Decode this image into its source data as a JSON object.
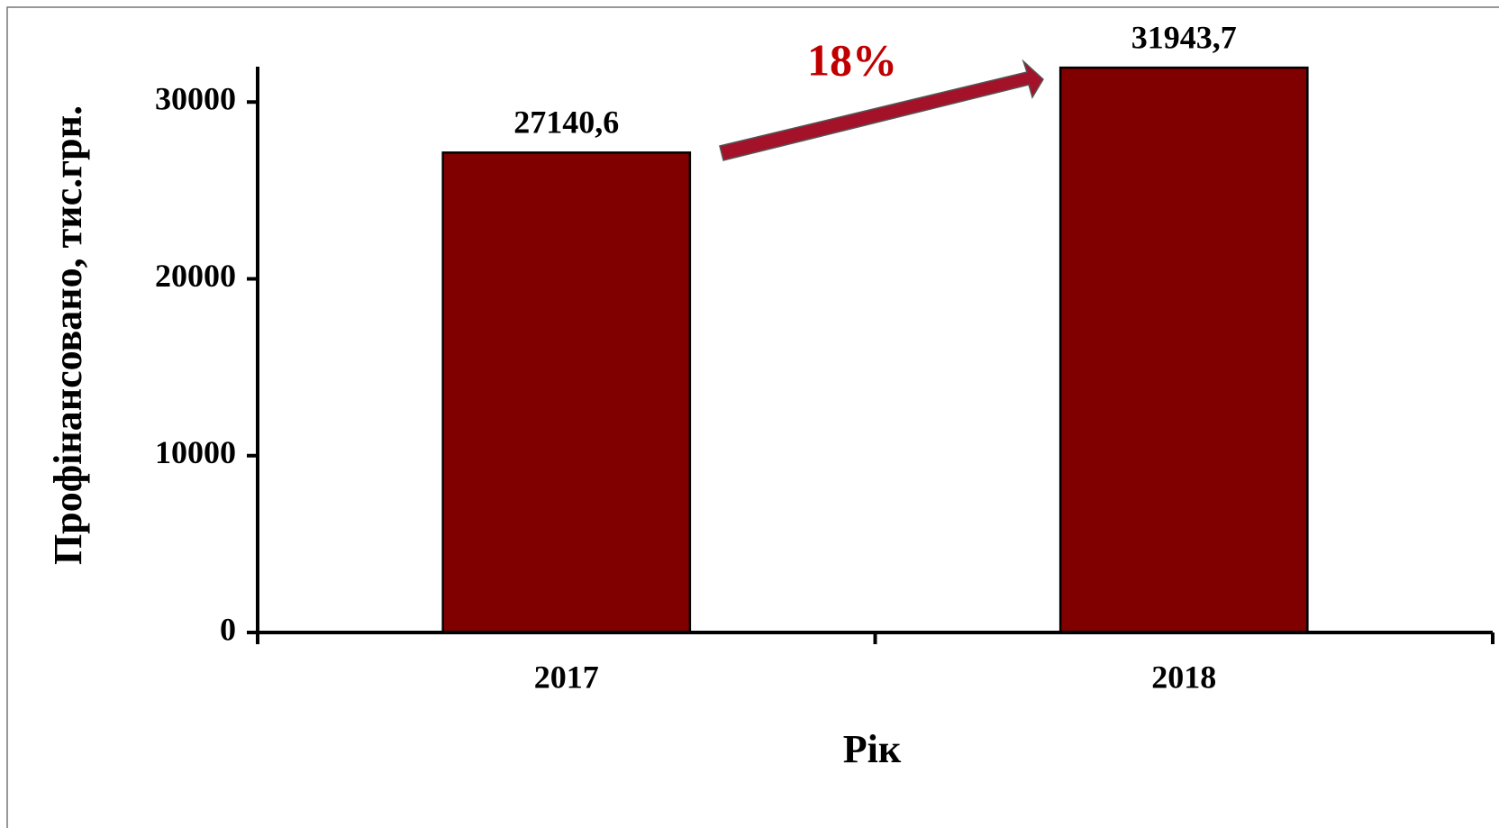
{
  "chart_data": {
    "type": "bar",
    "categories": [
      "2017",
      "2018"
    ],
    "values": [
      27140.6,
      31943.7
    ],
    "value_labels": [
      "27140,6",
      "31943,7"
    ],
    "color": "#800000",
    "ylim": [
      0,
      32000
    ],
    "yticks": [
      0,
      10000,
      20000,
      30000
    ],
    "y_label": "Профінансовано,  тис.грн.",
    "x_label": "Рік",
    "annotation": "18%"
  }
}
